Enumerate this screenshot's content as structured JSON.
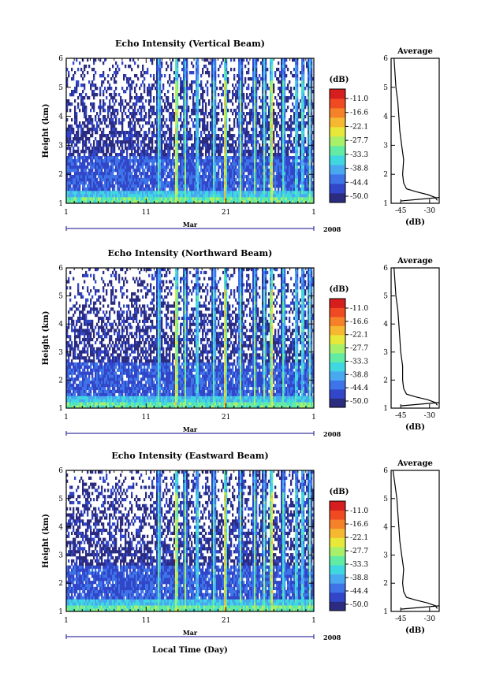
{
  "chart_data": [
    {
      "type": "heatmap",
      "title": "Echo Intensity (Vertical Beam)",
      "ylabel": "Height (km)",
      "yticks": [
        "1",
        "2",
        "3",
        "4",
        "5",
        "6"
      ],
      "ylim": [
        1,
        6
      ],
      "xticks": [
        "1",
        "11",
        "21",
        "1"
      ],
      "xlim": [
        1,
        32
      ],
      "month": "Mar",
      "year": "2008",
      "colorbar": {
        "unit": "(dB)",
        "levels": [
          "-11.0",
          "-16.6",
          "-22.1",
          "-27.7",
          "-33.3",
          "-38.8",
          "-44.4",
          "-50.0"
        ],
        "colors": [
          "#2b2c80",
          "#3146c8",
          "#3f74e8",
          "#49a9f0",
          "#40d8e0",
          "#62eba3",
          "#a8f06a",
          "#e8e83a",
          "#f5b830",
          "#f58228",
          "#f04a22",
          "#d61e1e"
        ]
      },
      "average": {
        "title": "Average",
        "xlabel": "(dB)",
        "xticks": [
          "-45",
          "-30"
        ],
        "xlim": [
          -50,
          -25
        ],
        "heights": [
          1.1,
          1.2,
          1.3,
          1.4,
          1.5,
          1.7,
          2.0,
          2.5,
          3.0,
          3.5,
          4.0,
          4.5,
          5.0,
          5.5,
          6.0
        ],
        "values": [
          -26,
          -27,
          -31,
          -37,
          -42,
          -43.5,
          -44,
          -43.5,
          -44.5,
          -45.5,
          -46,
          -46.5,
          -47.5,
          -48,
          -48.5
        ]
      }
    },
    {
      "type": "heatmap",
      "title": "Echo Intensity (Northward Beam)",
      "ylabel": "Height (km)",
      "yticks": [
        "1",
        "2",
        "3",
        "4",
        "5",
        "6"
      ],
      "ylim": [
        1,
        6
      ],
      "xticks": [
        "1",
        "11",
        "21",
        "1"
      ],
      "xlim": [
        1,
        32
      ],
      "month": "Mar",
      "year": "2008",
      "colorbar": {
        "unit": "(dB)",
        "levels": [
          "-11.0",
          "-16.6",
          "-22.1",
          "-27.7",
          "-33.3",
          "-38.8",
          "-44.4",
          "-50.0"
        ],
        "colors": [
          "#2b2c80",
          "#3146c8",
          "#3f74e8",
          "#49a9f0",
          "#40d8e0",
          "#62eba3",
          "#a8f06a",
          "#e8e83a",
          "#f5b830",
          "#f58228",
          "#f04a22",
          "#d61e1e"
        ]
      },
      "average": {
        "title": "Average",
        "xlabel": "(dB)",
        "xticks": [
          "-45",
          "-30"
        ],
        "xlim": [
          -50,
          -25
        ],
        "heights": [
          1.1,
          1.2,
          1.3,
          1.4,
          1.5,
          1.7,
          2.0,
          2.5,
          3.0,
          3.5,
          4.0,
          4.5,
          5.0,
          5.5,
          6.0
        ],
        "values": [
          -26,
          -27,
          -31,
          -37,
          -42,
          -43.5,
          -44,
          -44,
          -45,
          -45.5,
          -46,
          -46.5,
          -47.5,
          -48,
          -48.5
        ]
      }
    },
    {
      "type": "heatmap",
      "title": "Echo Intensity (Eastward Beam)",
      "ylabel": "Height (km)",
      "yticks": [
        "1",
        "2",
        "3",
        "4",
        "5",
        "6"
      ],
      "ylim": [
        1,
        6
      ],
      "xticks": [
        "1",
        "11",
        "21",
        "1"
      ],
      "xlim": [
        1,
        32
      ],
      "month": "Mar",
      "year": "2008",
      "xlabel": "Local Time (Day)",
      "colorbar": {
        "unit": "(dB)",
        "levels": [
          "-11.0",
          "-16.6",
          "-22.1",
          "-27.7",
          "-33.3",
          "-38.8",
          "-44.4",
          "-50.0"
        ],
        "colors": [
          "#2b2c80",
          "#3146c8",
          "#3f74e8",
          "#49a9f0",
          "#40d8e0",
          "#62eba3",
          "#a8f06a",
          "#e8e83a",
          "#f5b830",
          "#f58228",
          "#f04a22",
          "#d61e1e"
        ]
      },
      "average": {
        "title": "Average",
        "xlabel": "(dB)",
        "xticks": [
          "-45",
          "-30"
        ],
        "xlim": [
          -50,
          -25
        ],
        "heights": [
          1.1,
          1.2,
          1.3,
          1.4,
          1.5,
          1.7,
          2.0,
          2.5,
          3.0,
          3.5,
          4.0,
          4.5,
          5.0,
          5.5,
          6.0
        ],
        "values": [
          -26,
          -27,
          -31,
          -37,
          -42,
          -43.5,
          -44,
          -43.5,
          -44.5,
          -45.5,
          -46,
          -46.5,
          -47,
          -48,
          -49
        ]
      }
    }
  ]
}
